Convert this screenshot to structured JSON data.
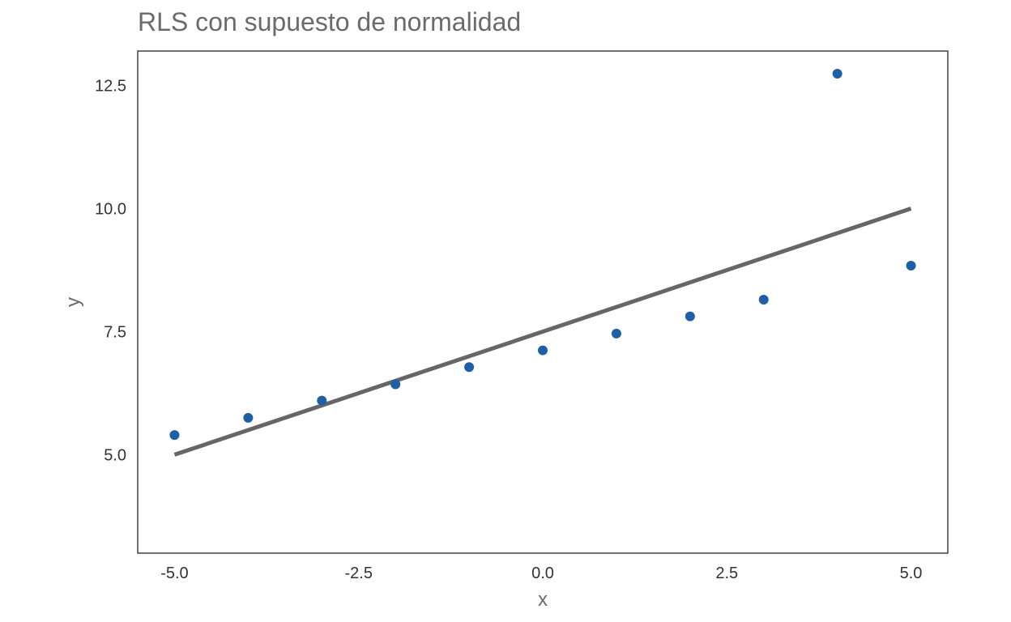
{
  "chart_data": {
    "type": "scatter",
    "title": "RLS con supuesto de normalidad",
    "xlabel": "x",
    "ylabel": "y",
    "xlim": [
      -5.5,
      5.5
    ],
    "ylim": [
      3.0,
      13.2
    ],
    "xticks": [
      -5.0,
      -2.5,
      0.0,
      2.5,
      5.0
    ],
    "xtick_labels": [
      "-5.0",
      "-2.5",
      "0.0",
      "2.5",
      "5.0"
    ],
    "yticks": [
      5.0,
      7.5,
      10.0,
      12.5
    ],
    "ytick_labels": [
      "5.0",
      "7.5",
      "10.0",
      "12.5"
    ],
    "grid": false,
    "series": [
      {
        "kind": "points",
        "color": "#1f5fa6",
        "x": [
          -5,
          -4,
          -3,
          -2,
          -1,
          0,
          1,
          2,
          3,
          4,
          5
        ],
        "y": [
          5.4,
          5.75,
          6.1,
          6.43,
          6.78,
          7.12,
          7.46,
          7.81,
          8.15,
          12.74,
          8.84
        ]
      },
      {
        "kind": "line",
        "color": "#666666",
        "x": [
          -5,
          5
        ],
        "y": [
          5.0,
          10.0
        ]
      }
    ]
  }
}
